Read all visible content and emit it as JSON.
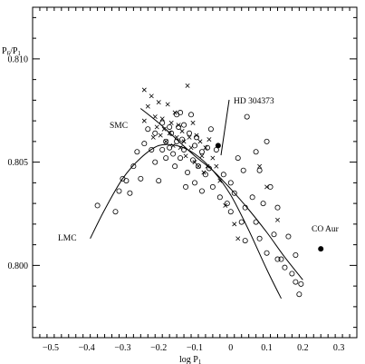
{
  "chart_data": {
    "type": "scatter",
    "xlabel": "log P",
    "xlabel_sub": "1",
    "ylabel": "P",
    "ylabel_sub_num": "6",
    "ylabel_slash": "/",
    "ylabel_den": "P",
    "ylabel_sub_den": "1",
    "xlim": [
      -0.55,
      0.35
    ],
    "ylim": [
      0.7965,
      0.8125
    ],
    "xticks": [
      -0.5,
      -0.4,
      -0.3,
      -0.2,
      -0.1,
      0,
      0.1,
      0.2,
      0.3
    ],
    "xtick_labels": [
      "−0.5",
      "−0.4",
      "−0.3",
      "−0.2",
      "−0.1",
      "0",
      "0.1",
      "0.2",
      "0.3"
    ],
    "yticks_labeled": [
      0.8,
      0.805,
      0.81
    ],
    "ytick_labels": [
      "0.800",
      "0.805",
      "0.810"
    ],
    "annotations": {
      "smc": "SMC",
      "lmc": "LMC",
      "hd": "HD 304373",
      "coaur": "CO Aur"
    },
    "series": [
      {
        "name": "LMC",
        "marker": "circle",
        "points": [
          [
            -0.37,
            0.8029
          ],
          [
            -0.32,
            0.8026
          ],
          [
            -0.31,
            0.8036
          ],
          [
            -0.3,
            0.8042
          ],
          [
            -0.29,
            0.8041
          ],
          [
            -0.28,
            0.8035
          ],
          [
            -0.27,
            0.8048
          ],
          [
            -0.26,
            0.8055
          ],
          [
            -0.25,
            0.8042
          ],
          [
            -0.24,
            0.8059
          ],
          [
            -0.23,
            0.8066
          ],
          [
            -0.22,
            0.8056
          ],
          [
            -0.21,
            0.8064
          ],
          [
            -0.21,
            0.805
          ],
          [
            -0.2,
            0.8041
          ],
          [
            -0.19,
            0.8069
          ],
          [
            -0.19,
            0.8056
          ],
          [
            -0.18,
            0.806
          ],
          [
            -0.18,
            0.8052
          ],
          [
            -0.17,
            0.8067
          ],
          [
            -0.17,
            0.8057
          ],
          [
            -0.165,
            0.8064
          ],
          [
            -0.16,
            0.8054
          ],
          [
            -0.155,
            0.8048
          ],
          [
            -0.15,
            0.8073
          ],
          [
            -0.15,
            0.806
          ],
          [
            -0.145,
            0.8067
          ],
          [
            -0.14,
            0.8074
          ],
          [
            -0.14,
            0.8052
          ],
          [
            -0.135,
            0.8061
          ],
          [
            -0.13,
            0.8068
          ],
          [
            -0.13,
            0.8056
          ],
          [
            -0.125,
            0.8038
          ],
          [
            -0.12,
            0.8045
          ],
          [
            -0.115,
            0.8064
          ],
          [
            -0.11,
            0.8073
          ],
          [
            -0.105,
            0.8051
          ],
          [
            -0.1,
            0.8058
          ],
          [
            -0.1,
            0.804
          ],
          [
            -0.095,
            0.8062
          ],
          [
            -0.09,
            0.8048
          ],
          [
            -0.08,
            0.8055
          ],
          [
            -0.08,
            0.8036
          ],
          [
            -0.07,
            0.8044
          ],
          [
            -0.065,
            0.8057
          ],
          [
            -0.06,
            0.8047
          ],
          [
            -0.055,
            0.8066
          ],
          [
            -0.05,
            0.8038
          ],
          [
            -0.04,
            0.8056
          ],
          [
            -0.03,
            0.8033
          ],
          [
            -0.02,
            0.8044
          ],
          [
            -0.01,
            0.803
          ],
          [
            0.0,
            0.804
          ],
          [
            0.0,
            0.8026
          ],
          [
            0.01,
            0.8035
          ],
          [
            0.02,
            0.8052
          ],
          [
            0.03,
            0.8021
          ],
          [
            0.035,
            0.8046
          ],
          [
            0.04,
            0.8028
          ],
          [
            0.04,
            0.8012
          ],
          [
            0.045,
            0.8072
          ],
          [
            0.06,
            0.8033
          ],
          [
            0.07,
            0.8055
          ],
          [
            0.07,
            0.8021
          ],
          [
            0.08,
            0.8046
          ],
          [
            0.08,
            0.8013
          ],
          [
            0.09,
            0.803
          ],
          [
            0.1,
            0.806
          ],
          [
            0.1,
            0.8006
          ],
          [
            0.11,
            0.8038
          ],
          [
            0.12,
            0.8015
          ],
          [
            0.13,
            0.8028
          ],
          [
            0.13,
            0.8003
          ],
          [
            0.14,
            0.8003
          ],
          [
            0.15,
            0.7999
          ],
          [
            0.16,
            0.8014
          ],
          [
            0.17,
            0.7996
          ],
          [
            0.18,
            0.7992
          ],
          [
            0.18,
            0.8005
          ],
          [
            0.19,
            0.7986
          ],
          [
            0.195,
            0.7991
          ]
        ]
      },
      {
        "name": "SMC",
        "marker": "cross",
        "points": [
          [
            -0.24,
            0.8085
          ],
          [
            -0.24,
            0.807
          ],
          [
            -0.23,
            0.8077
          ],
          [
            -0.22,
            0.8082
          ],
          [
            -0.215,
            0.8062
          ],
          [
            -0.21,
            0.8072
          ],
          [
            -0.205,
            0.8067
          ],
          [
            -0.2,
            0.8079
          ],
          [
            -0.195,
            0.8063
          ],
          [
            -0.19,
            0.8071
          ],
          [
            -0.185,
            0.8066
          ],
          [
            -0.18,
            0.806
          ],
          [
            -0.175,
            0.8078
          ],
          [
            -0.17,
            0.8064
          ],
          [
            -0.165,
            0.8069
          ],
          [
            -0.16,
            0.8058
          ],
          [
            -0.155,
            0.8074
          ],
          [
            -0.15,
            0.8062
          ],
          [
            -0.145,
            0.8068
          ],
          [
            -0.14,
            0.8057
          ],
          [
            -0.135,
            0.8065
          ],
          [
            -0.13,
            0.806
          ],
          [
            -0.125,
            0.8053
          ],
          [
            -0.12,
            0.8087
          ],
          [
            -0.115,
            0.8062
          ],
          [
            -0.11,
            0.8057
          ],
          [
            -0.105,
            0.8069
          ],
          [
            -0.1,
            0.805
          ],
          [
            -0.095,
            0.8063
          ],
          [
            -0.09,
            0.8048
          ],
          [
            -0.085,
            0.806
          ],
          [
            -0.08,
            0.8053
          ],
          [
            -0.075,
            0.8045
          ],
          [
            -0.07,
            0.8057
          ],
          [
            -0.065,
            0.8048
          ],
          [
            -0.06,
            0.8061
          ],
          [
            -0.05,
            0.8052
          ],
          [
            -0.04,
            0.8048
          ],
          [
            -0.03,
            0.8041
          ],
          [
            -0.015,
            0.8029
          ],
          [
            0.01,
            0.802
          ],
          [
            0.02,
            0.8013
          ],
          [
            0.08,
            0.8048
          ],
          [
            0.1,
            0.8038
          ],
          [
            0.13,
            0.8022
          ]
        ]
      },
      {
        "name": "HD 304373",
        "marker": "dot",
        "points": [
          [
            -0.035,
            0.8058
          ]
        ]
      },
      {
        "name": "CO Aur",
        "marker": "dot",
        "points": [
          [
            0.25,
            0.8008
          ]
        ]
      }
    ],
    "curves": [
      {
        "name": "LMC",
        "points": [
          [
            -0.39,
            0.8013
          ],
          [
            -0.35,
            0.8027
          ],
          [
            -0.3,
            0.8042
          ],
          [
            -0.25,
            0.8052
          ],
          [
            -0.2,
            0.8058
          ],
          [
            -0.15,
            0.8058
          ],
          [
            -0.1,
            0.8054
          ],
          [
            -0.05,
            0.8046
          ],
          [
            0.0,
            0.8034
          ],
          [
            0.05,
            0.8017
          ],
          [
            0.1,
            0.7998
          ],
          [
            0.14,
            0.7984
          ]
        ]
      },
      {
        "name": "SMC",
        "points": [
          [
            -0.25,
            0.8076
          ],
          [
            -0.2,
            0.8069
          ],
          [
            -0.15,
            0.8061
          ],
          [
            -0.1,
            0.8053
          ],
          [
            -0.05,
            0.8046
          ],
          [
            0.0,
            0.8037
          ],
          [
            0.05,
            0.8027
          ],
          [
            0.1,
            0.8016
          ],
          [
            0.15,
            0.8004
          ],
          [
            0.2,
            0.7993
          ]
        ]
      }
    ]
  }
}
